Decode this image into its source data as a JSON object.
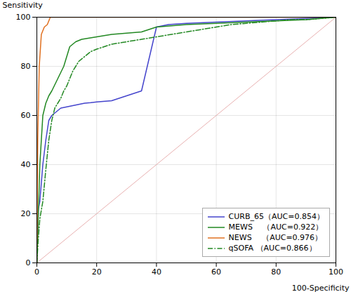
{
  "chart_data": {
    "type": "line",
    "xlabel": "100-Specificity",
    "ylabel": "Sensitivity",
    "xlim": [
      0,
      100
    ],
    "ylim": [
      0,
      100
    ],
    "xticks": [
      0,
      20,
      40,
      60,
      80,
      100
    ],
    "yticks": [
      0,
      20,
      40,
      60,
      80,
      100
    ],
    "grid": true,
    "legend": "lower right",
    "diagonal": {
      "x": [
        0,
        100
      ],
      "y": [
        0,
        100
      ],
      "color": "#e8b0b0"
    },
    "series": [
      {
        "name": "CURB_65（AUC=0.854）",
        "color": "#4444cc",
        "line_style": "solid",
        "x": [
          0,
          0.5,
          1,
          2,
          3,
          4,
          5,
          6,
          7,
          8,
          10,
          12,
          14,
          16,
          18,
          20,
          25,
          30,
          35,
          40,
          42,
          44,
          50,
          60,
          70,
          80,
          90,
          100
        ],
        "values": [
          0,
          22,
          25,
          40,
          50,
          58,
          60,
          61,
          62,
          63,
          63.5,
          64,
          64.5,
          65,
          65.2,
          65.5,
          66,
          68,
          70,
          96,
          96.5,
          97,
          97.5,
          98,
          98.5,
          99,
          99.5,
          100
        ]
      },
      {
        "name": "MEWS 　（AUC=0.922）",
        "color": "#228822",
        "line_style": "solid",
        "x": [
          0,
          0.5,
          1,
          2,
          3,
          4,
          5,
          7,
          9,
          11,
          13,
          15,
          20,
          25,
          30,
          35,
          40,
          50,
          60,
          70,
          80,
          90,
          100
        ],
        "values": [
          0,
          20,
          40,
          60,
          65,
          68,
          70,
          75,
          80,
          88,
          90,
          91,
          92,
          93,
          93.5,
          94,
          96,
          97,
          97.5,
          98,
          98.5,
          99,
          100
        ]
      },
      {
        "name": "NEWS 　（AUC=0.976）",
        "color": "#e07020",
        "line_style": "solid",
        "x": [
          0,
          0.3,
          0.8,
          1.5,
          2.5,
          3.5,
          4.5,
          10,
          20,
          40,
          60,
          80,
          100
        ],
        "values": [
          0,
          50,
          80,
          93,
          96,
          97,
          100,
          100,
          100,
          100,
          100,
          100,
          100
        ]
      },
      {
        "name": "qSOFA （AUC=0.866）",
        "color": "#228822",
        "line_style": "dashdot",
        "x": [
          0,
          0.5,
          1,
          2,
          3,
          4,
          5,
          6,
          7,
          8,
          9,
          10,
          12,
          14,
          16,
          18,
          20,
          25,
          30,
          35,
          40,
          45,
          50,
          55,
          60,
          65,
          70,
          75,
          80,
          85,
          90,
          95,
          100
        ],
        "values": [
          0,
          10,
          18,
          25,
          38,
          50,
          58,
          63,
          65,
          67,
          70,
          72,
          78,
          82,
          84,
          86,
          87,
          89,
          90,
          91,
          92,
          93,
          94,
          95,
          96,
          97,
          97.5,
          98,
          98.5,
          99,
          99,
          99.5,
          100
        ]
      }
    ]
  }
}
